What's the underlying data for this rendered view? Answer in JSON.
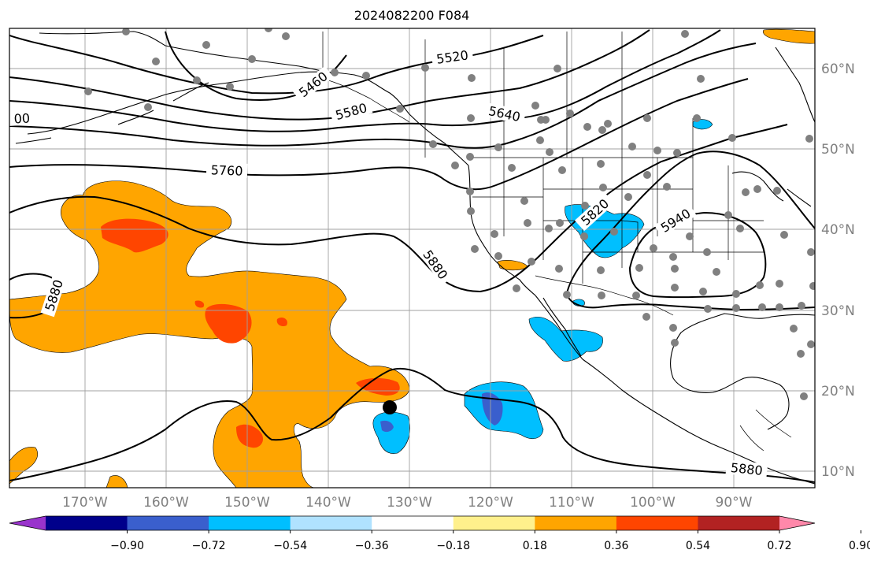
{
  "title": "2024082200 F084",
  "lon_labels": [
    "170°W",
    "160°W",
    "150°W",
    "140°W",
    "130°W",
    "120°W",
    "110°W",
    "100°W",
    "90°W"
  ],
  "lat_labels": [
    "60°N",
    "50°N",
    "40°N",
    "30°N",
    "20°N",
    "10°N"
  ],
  "contour_labels": [
    "5520",
    "5460",
    "5580",
    "5640",
    "00",
    "5760",
    "5820",
    "5940",
    "5880",
    "5880",
    "5880"
  ],
  "colorbar": {
    "tick_labels": [
      "−0.90",
      "−0.72",
      "−0.54",
      "−0.36",
      "−0.18",
      "0.18",
      "0.36",
      "0.54",
      "0.72",
      "0.90"
    ],
    "colors": [
      "#9933cc",
      "#00008b",
      "#3a5fcd",
      "#00bfff",
      "#b0e2ff",
      "#ffffff",
      "#fff08c",
      "#ffa500",
      "#ff4500",
      "#b22222",
      "#ff88aa"
    ]
  },
  "colors": {
    "orange": "#ffa500",
    "red": "#ff4500",
    "deep_sky_blue": "#00bfff",
    "royal_blue": "#3a5fcd",
    "dot": "#808080"
  },
  "map": {
    "projection": "PlateCarree",
    "lon_range": [
      -180,
      -80
    ],
    "lat_range": [
      8,
      65
    ],
    "gridlines": true
  }
}
